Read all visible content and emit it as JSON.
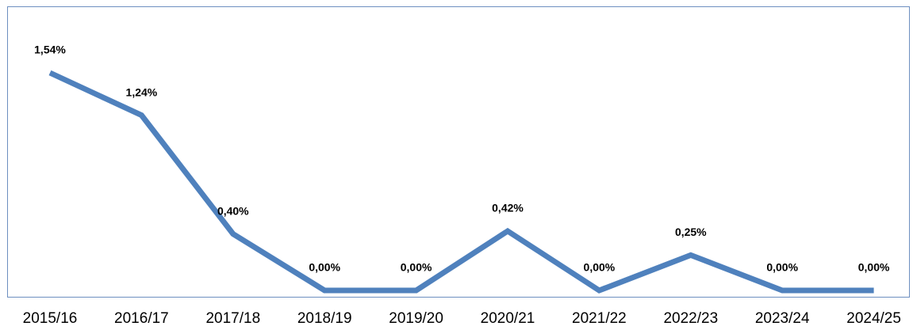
{
  "chart_data": {
    "type": "line",
    "categories": [
      "2015/16",
      "2016/17",
      "2017/18",
      "2018/19",
      "2019/20",
      "2020/21",
      "2021/22",
      "2022/23",
      "2023/24",
      "2024/25"
    ],
    "values": [
      1.54,
      1.24,
      0.4,
      0.0,
      0.0,
      0.42,
      0.0,
      0.25,
      0.0,
      0.0
    ],
    "value_labels": [
      "1,54%",
      "1,24%",
      "0,40%",
      "0,00%",
      "0,00%",
      "0,42%",
      "0,00%",
      "0,25%",
      "0,00%",
      "0,00%"
    ],
    "color": "#4f81bd"
  }
}
